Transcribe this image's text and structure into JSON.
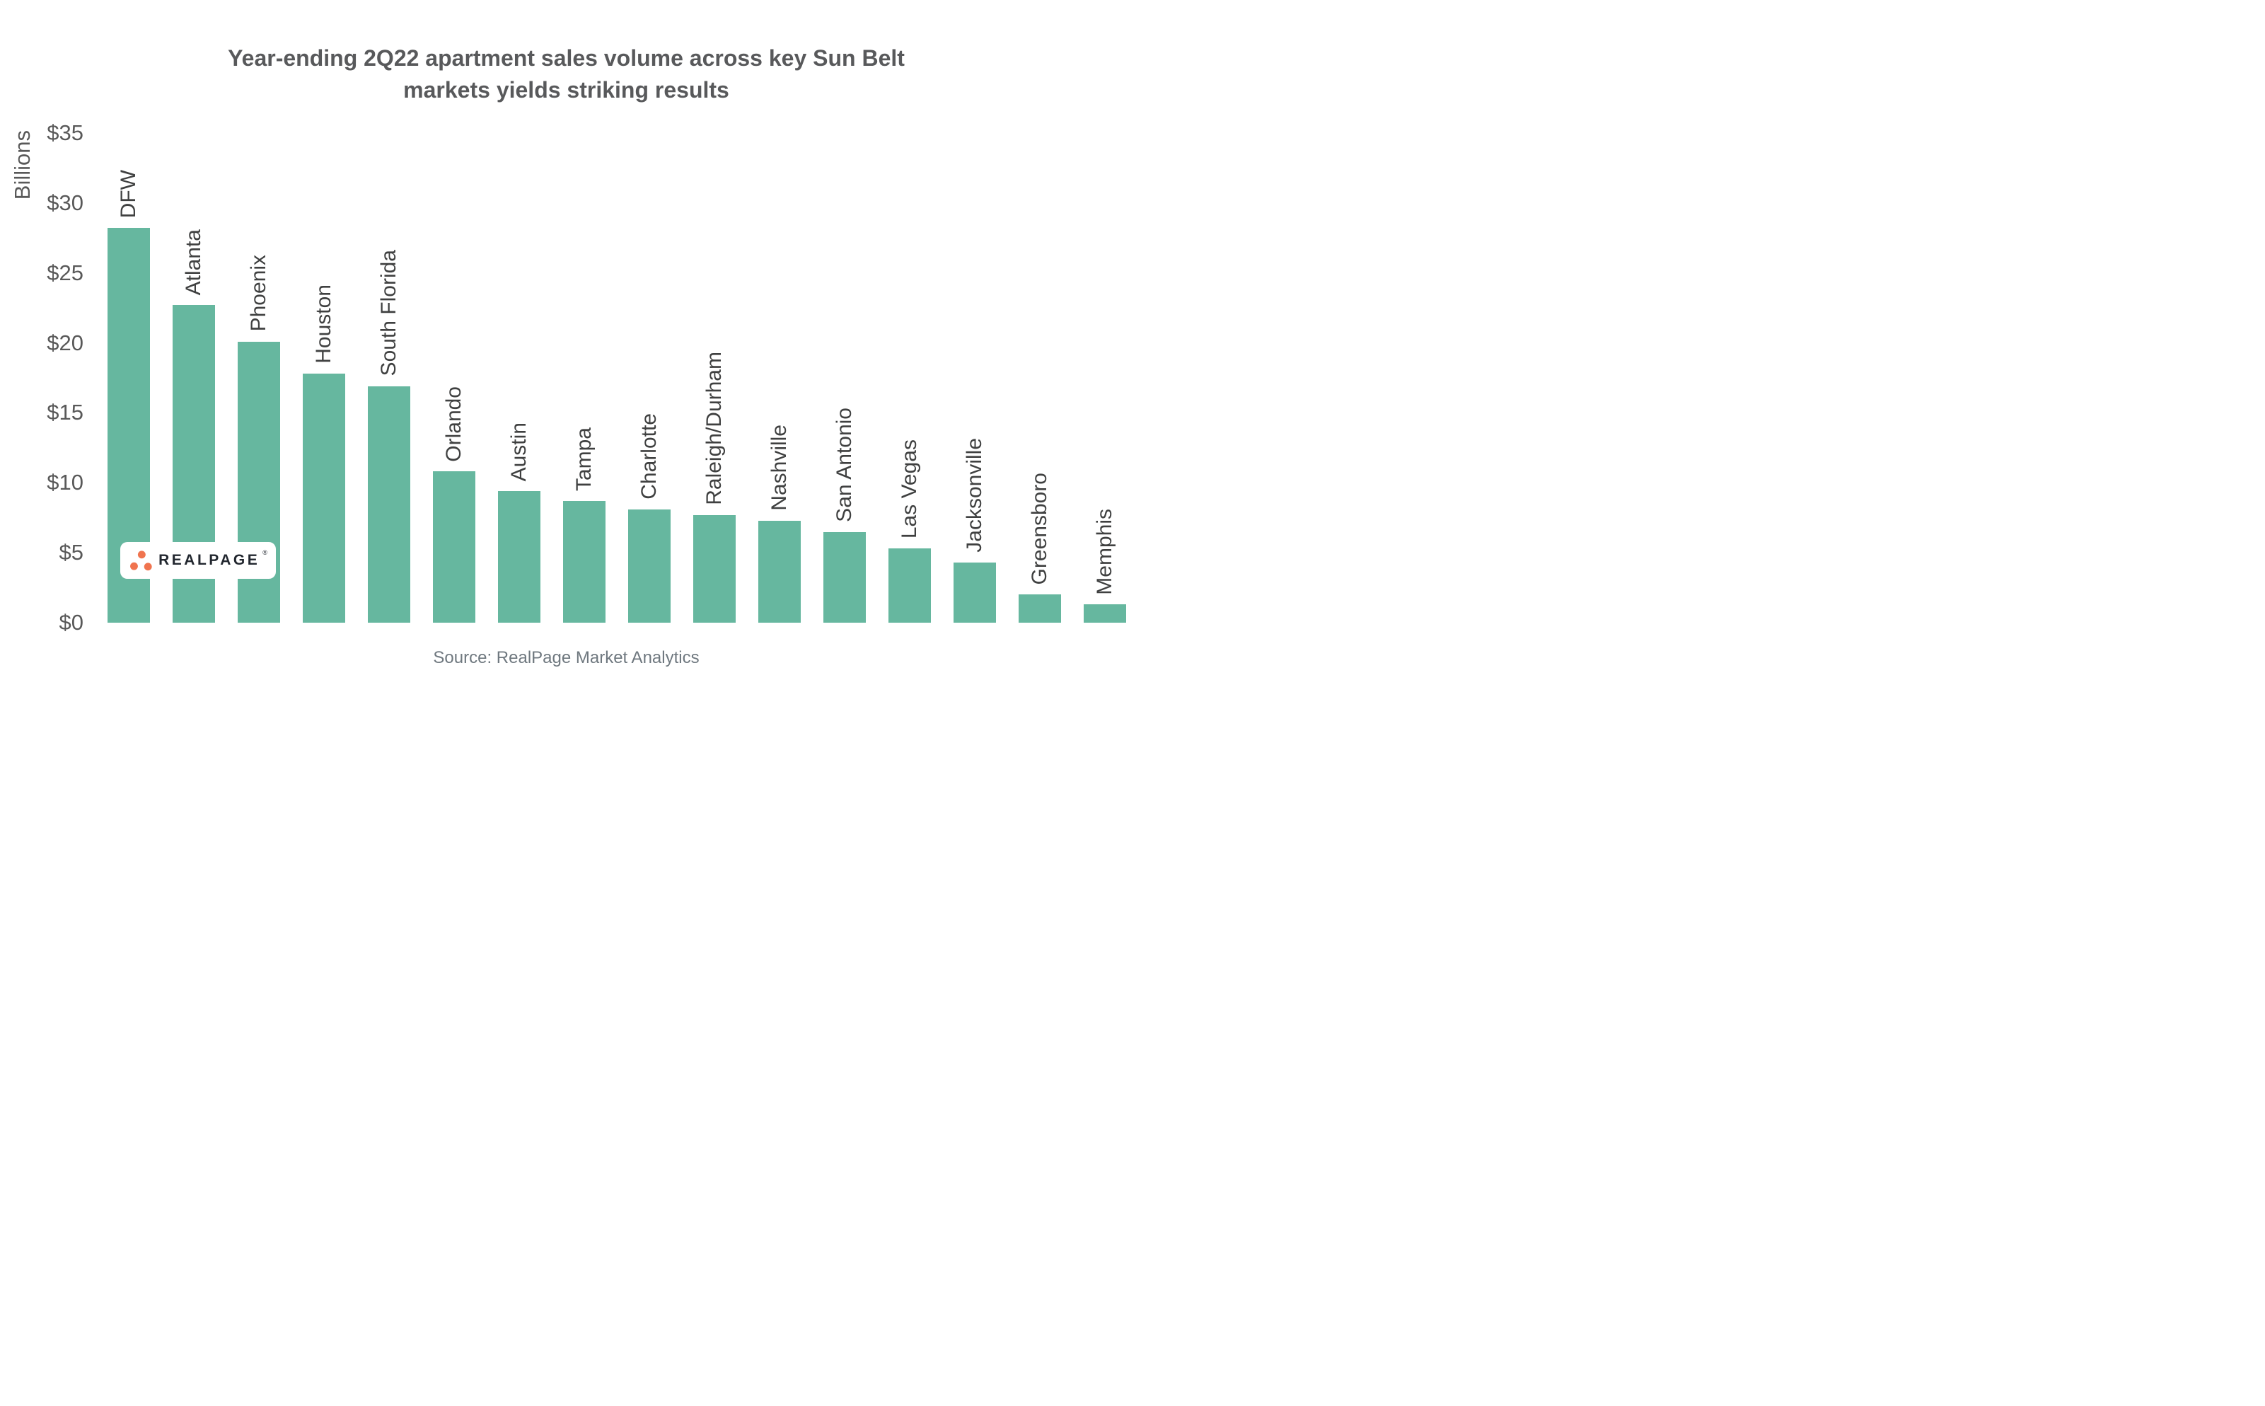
{
  "title": "Year-ending 2Q22 apartment sales volume across key Sun Belt\nmarkets yields striking results",
  "y_axis_label": "Billions",
  "source_note": "Source: RealPage Market Analytics",
  "logo": {
    "text": "REALPAGE",
    "registered_mark": "®",
    "dot_color": "#F0744F",
    "text_color": "#22272F"
  },
  "colors": {
    "bar": "#66B79F",
    "title_text": "#58595B",
    "axis_text": "#595959",
    "category_text": "#3F4040",
    "source_text": "#6F787F",
    "background": "#FFFFFF"
  },
  "chart_data": {
    "type": "bar",
    "title": "Year-ending 2Q22 apartment sales volume across key Sun Belt markets yields striking results",
    "xlabel": "",
    "ylabel": "Billions",
    "unit": "USD billions",
    "categories": [
      "DFW",
      "Atlanta",
      "Phoenix",
      "Houston",
      "South Florida",
      "Orlando",
      "Austin",
      "Tampa",
      "Charlotte",
      "Raleigh/Durham",
      "Nashville",
      "San Antonio",
      "Las Vegas",
      "Jacksonville",
      "Greensboro",
      "Memphis"
    ],
    "values": [
      28.2,
      22.7,
      20.1,
      17.8,
      16.9,
      10.8,
      9.4,
      8.7,
      8.1,
      7.7,
      7.3,
      6.5,
      5.3,
      4.3,
      2.0,
      1.3
    ],
    "ylim": [
      0,
      35
    ],
    "ytick_values": [
      35,
      30,
      25,
      20,
      15,
      10,
      5,
      0
    ],
    "ytick_labels": [
      "$35",
      "$30",
      "$25",
      "$20",
      "$15",
      "$10",
      "$5",
      "$0"
    ],
    "grid": false,
    "legend": false,
    "bar_label_rotation": 90
  }
}
